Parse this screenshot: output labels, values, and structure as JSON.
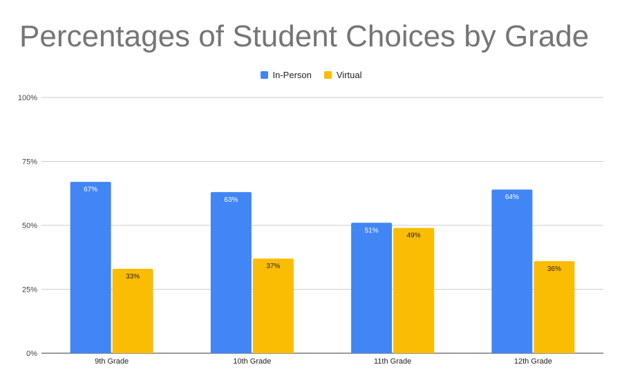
{
  "chart_data": {
    "type": "bar",
    "title": "Percentages of Student Choices by Grade",
    "xlabel": "",
    "ylabel": "",
    "ylim": [
      0,
      100
    ],
    "yticks": [
      "0%",
      "25%",
      "50%",
      "75%",
      "100%"
    ],
    "ytick_values": [
      0,
      25,
      50,
      75,
      100
    ],
    "grid": true,
    "legend_position": "top",
    "categories": [
      "9th Grade",
      "10th Grade",
      "11th Grade",
      "12th Grade"
    ],
    "series": [
      {
        "name": "In-Person",
        "color": "#4285f4",
        "label_color": "#ffffff",
        "values": [
          67,
          63,
          51,
          64
        ],
        "labels": [
          "67%",
          "63%",
          "51%",
          "64%"
        ]
      },
      {
        "name": "Virtual",
        "color": "#fbbc04",
        "label_color": "#222222",
        "values": [
          33,
          37,
          49,
          36
        ],
        "labels": [
          "33%",
          "37%",
          "49%",
          "36%"
        ]
      }
    ]
  }
}
